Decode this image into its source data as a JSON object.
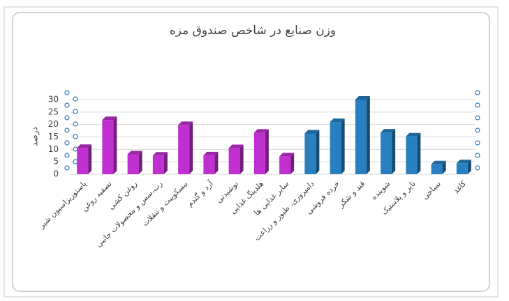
{
  "chart_data": {
    "type": "bar",
    "title": "وزن صنایع در شاخص صندوق مزه",
    "y_label": "درصد",
    "categories": [
      "پاستوریزاسیون شیر",
      "تصفیه روغن",
      "روغن کشی",
      "رب،سس و محصولات جانبی",
      "بیسکوییت و تنقلات",
      "آرد و گندم",
      "نوشیدنی",
      "هلدینگ غذایی",
      "سایر غذایی ها",
      "دامپروری، طیور و زراعت",
      "خرده فروشی",
      "قند و شکر",
      "شوینده",
      "تایر و پلاستیک",
      "نساجی",
      "کاغذ"
    ],
    "values": [
      10.6,
      21.8,
      8,
      7.5,
      19.8,
      7.6,
      10.5,
      16.7,
      7.2,
      16.4,
      21,
      30,
      16.8,
      15.2,
      4,
      4.4
    ],
    "colors": [
      "#c030d0",
      "#c030d0",
      "#c030d0",
      "#c030d0",
      "#c030d0",
      "#c030d0",
      "#c030d0",
      "#c030d0",
      "#c030d0",
      "#2880c0",
      "#2880c0",
      "#2880c0",
      "#2880c0",
      "#2880c0",
      "#2880c0",
      "#2880c0"
    ],
    "ylim": [
      0,
      30
    ],
    "yticks": [
      0,
      5,
      10,
      15,
      20,
      25,
      30
    ],
    "grid": true
  }
}
